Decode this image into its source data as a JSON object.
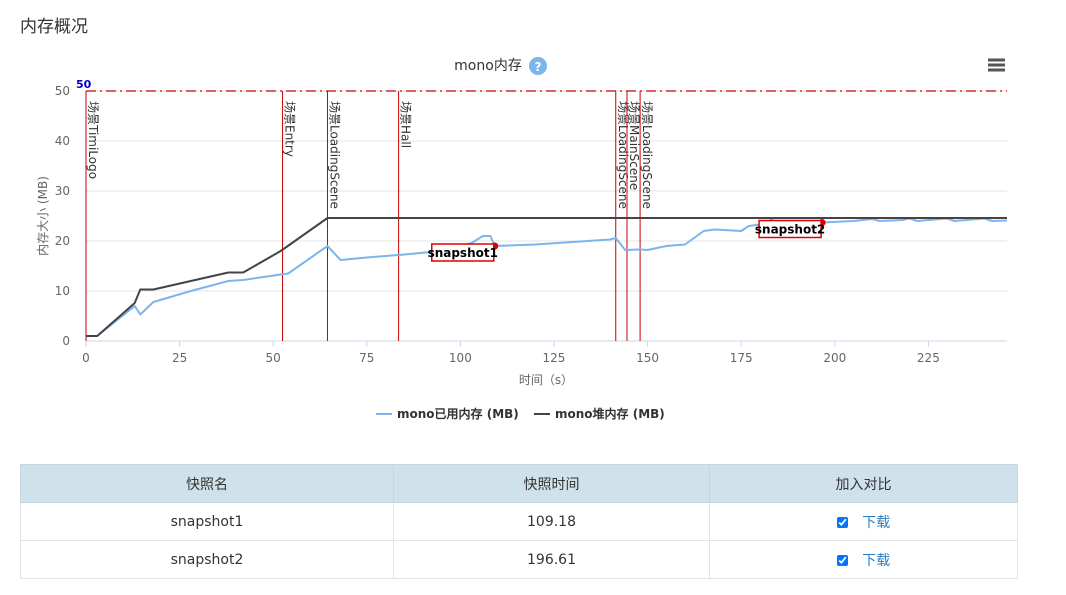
{
  "section_title": "内存概况",
  "chart_data": {
    "type": "line",
    "title": "mono内存",
    "help_icon": "question-circle-icon",
    "menu_icon": "hamburger-menu-icon",
    "xlabel": "时间（s）",
    "ylabel": "内存大小 (MB)",
    "xlim": [
      0,
      246
    ],
    "ylim": [
      0,
      50
    ],
    "xticks": [
      0,
      25,
      50,
      75,
      100,
      125,
      150,
      175,
      200,
      225
    ],
    "yticks": [
      0,
      10,
      20,
      30,
      40,
      50
    ],
    "grid": true,
    "legend_position": "bottom",
    "threshold": {
      "value": 50,
      "label": "50",
      "color": "#cc0000"
    },
    "scene_markers": [
      {
        "x": 0,
        "label": "场景TimiLogo"
      },
      {
        "x": 52.5,
        "label": "场景Entry"
      },
      {
        "x": 64.5,
        "label": "场景LoadingScene"
      },
      {
        "x": 83.5,
        "label": "场景Hall"
      },
      {
        "x": 141.5,
        "label": "场景LoadingScene"
      },
      {
        "x": 144.5,
        "label": "场景MainScene"
      },
      {
        "x": 148,
        "label": "场景LoadingScene"
      }
    ],
    "series": [
      {
        "name": "mono已用内存 (MB)",
        "color": "#7cb5ec",
        "points": [
          [
            0,
            1
          ],
          [
            3,
            1
          ],
          [
            13,
            7
          ],
          [
            14.5,
            5.3
          ],
          [
            18,
            7.8
          ],
          [
            28,
            10
          ],
          [
            38,
            12
          ],
          [
            42,
            12.2
          ],
          [
            52,
            13.3
          ],
          [
            54,
            13.5
          ],
          [
            64.5,
            19
          ],
          [
            68,
            16.2
          ],
          [
            75,
            16.7
          ],
          [
            85,
            17.3
          ],
          [
            95,
            18
          ],
          [
            103,
            19.6
          ],
          [
            106,
            21
          ],
          [
            108,
            21
          ],
          [
            109.18,
            19
          ],
          [
            120,
            19.3
          ],
          [
            130,
            19.8
          ],
          [
            140,
            20.3
          ],
          [
            141.5,
            20.6
          ],
          [
            144,
            18.2
          ],
          [
            148,
            18.3
          ],
          [
            150,
            18.2
          ],
          [
            155,
            19
          ],
          [
            160,
            19.3
          ],
          [
            165,
            22
          ],
          [
            168,
            22.3
          ],
          [
            175,
            22
          ],
          [
            177,
            23
          ],
          [
            182,
            23.5
          ],
          [
            183,
            24.3
          ],
          [
            185,
            23.3
          ],
          [
            190,
            23.6
          ],
          [
            196.61,
            23.7
          ],
          [
            205,
            24
          ],
          [
            210,
            24.4
          ],
          [
            212,
            24
          ],
          [
            218,
            24.2
          ],
          [
            220,
            24.5
          ],
          [
            222,
            24
          ],
          [
            230,
            24.5
          ],
          [
            232,
            24
          ],
          [
            240,
            24.5
          ],
          [
            242,
            24
          ],
          [
            246,
            24.1
          ]
        ]
      },
      {
        "name": "mono堆内存 (MB)",
        "color": "#434348",
        "points": [
          [
            0,
            1
          ],
          [
            3,
            1
          ],
          [
            13,
            7.6
          ],
          [
            14.5,
            10.3
          ],
          [
            18,
            10.3
          ],
          [
            38,
            13.7
          ],
          [
            42,
            13.7
          ],
          [
            52,
            18
          ],
          [
            64.5,
            24.6
          ],
          [
            246,
            24.6
          ]
        ]
      }
    ],
    "snapshots": [
      {
        "name": "snapshot1",
        "x": 109.18,
        "y": 19
      },
      {
        "name": "snapshot2",
        "x": 196.61,
        "y": 23.7
      }
    ]
  },
  "table": {
    "headers": [
      "快照名",
      "快照时间",
      "加入对比"
    ],
    "rows": [
      {
        "name": "snapshot1",
        "time": "109.18",
        "checked": true,
        "download": "下载"
      },
      {
        "name": "snapshot2",
        "time": "196.61",
        "checked": true,
        "download": "下载"
      }
    ]
  }
}
